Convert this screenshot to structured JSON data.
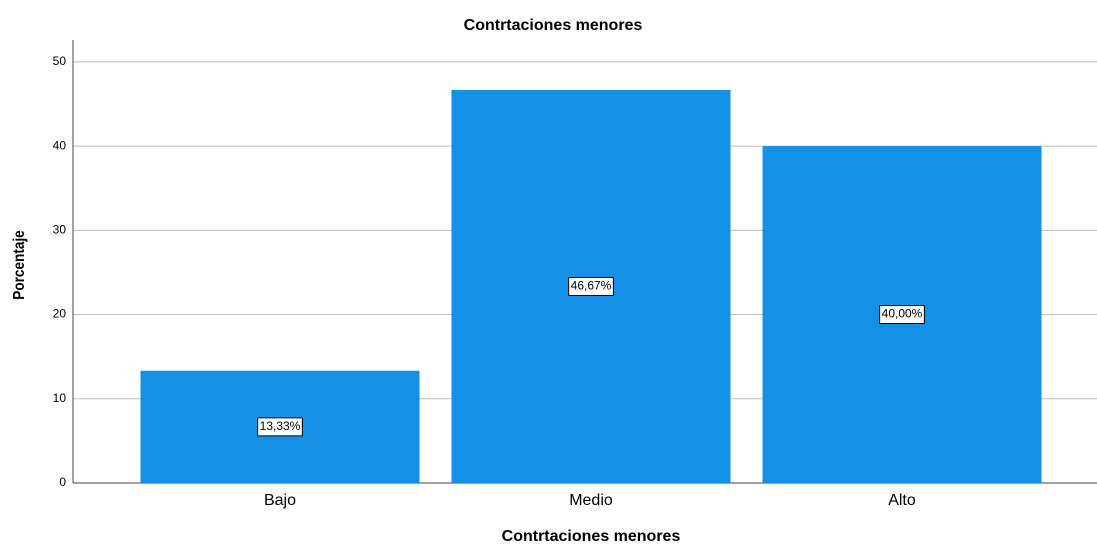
{
  "chart_data": {
    "type": "bar",
    "title": "Contrtaciones menores",
    "x_label": "Contrtaciones menores",
    "y_label": "Porcentaje",
    "categories": [
      "Bajo",
      "Medio",
      "Alto"
    ],
    "values": [
      13.33,
      46.67,
      40.0
    ],
    "value_labels": [
      "13,33%",
      "46,67%",
      "40,00%"
    ],
    "color": "#1490e6",
    "ylim": [
      0,
      52.6
    ],
    "yticks": [
      0,
      10,
      20,
      30,
      40,
      50
    ],
    "grid": true
  }
}
